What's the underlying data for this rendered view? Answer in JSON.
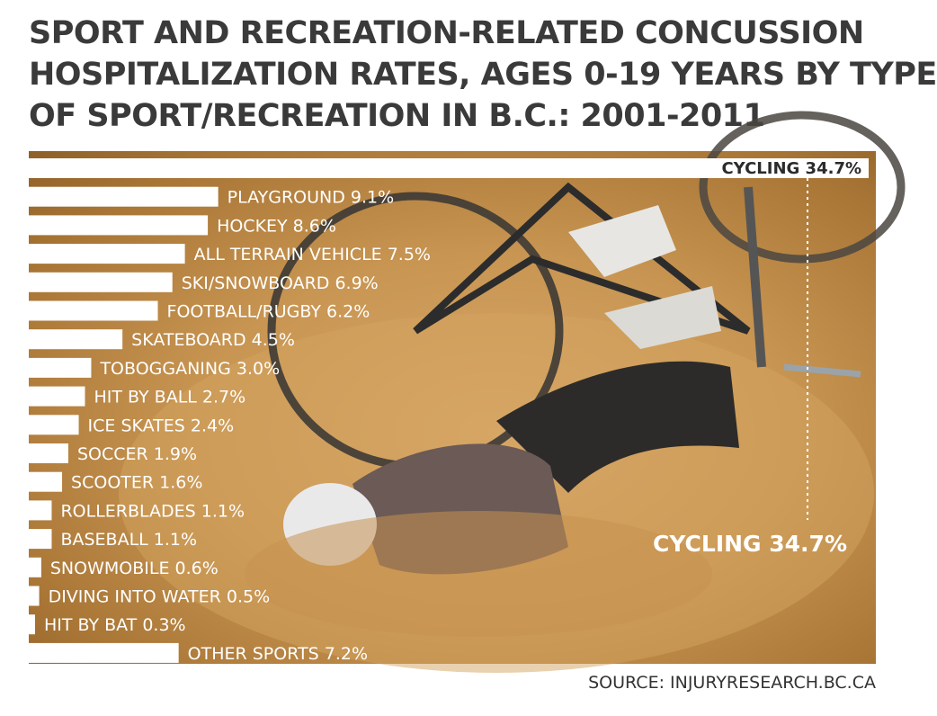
{
  "title_lines": [
    "SPORT AND RECREATION-RELATED CONCUSSION",
    "HOSPITALIZATION RATES, AGES 0-19 YEARS BY TYPE",
    "OF SPORT/RECREATION IN B.C.: 2001-2011"
  ],
  "source": "SOURCE: INJURYRESEARCH.BC.CA",
  "chart_data": {
    "type": "bar",
    "orientation": "horizontal",
    "title": "SPORT AND RECREATION-RELATED CONCUSSION HOSPITALIZATION RATES, AGES 0-19 YEARS BY TYPE OF SPORT/RECREATION IN B.C.: 2001-2011",
    "categories": [
      "CYCLING",
      "PLAYGROUND",
      "HOCKEY",
      "ALL TERRAIN VEHICLE",
      "SKI/SNOWBOARD",
      "FOOTBALL/RUGBY",
      "SKATEBOARD",
      "TOBOGGANING",
      "HIT BY BALL",
      "ICE SKATES",
      "SOCCER",
      "SCOOTER",
      "ROLLERBLADES",
      "BASEBALL",
      "SNOWMOBILE",
      "DIVING INTO WATER",
      "HIT BY BAT",
      "OTHER SPORTS"
    ],
    "values": [
      34.7,
      9.1,
      8.6,
      7.5,
      6.9,
      6.2,
      4.5,
      3.0,
      2.7,
      2.4,
      1.9,
      1.6,
      1.1,
      1.1,
      0.6,
      0.5,
      0.3,
      7.2
    ],
    "labels": [
      "CYCLING 34.7%",
      "PLAYGROUND 9.1%",
      "HOCKEY 8.6%",
      "ALL TERRAIN VEHICLE 7.5%",
      "SKI/SNOWBOARD 6.9%",
      "FOOTBALL/RUGBY 6.2%",
      "SKATEBOARD 4.5%",
      "TOBOGGANING 3.0%",
      "HIT BY BALL 2.7%",
      "ICE SKATES 2.4%",
      "SOCCER 1.9%",
      "SCOOTER 1.6%",
      "ROLLERBLADES 1.1%",
      "BASEBALL 1.1%",
      "SNOWMOBILE 0.6%",
      "DIVING INTO WATER 0.5%",
      "HIT BY BAT 0.3%",
      "OTHER SPORTS 7.2%"
    ],
    "callout": "CYCLING 34.7%",
    "unit": "%",
    "xlim": [
      0,
      34.7
    ],
    "bar_color": "#ffffff",
    "label_color": "#ffffff"
  }
}
